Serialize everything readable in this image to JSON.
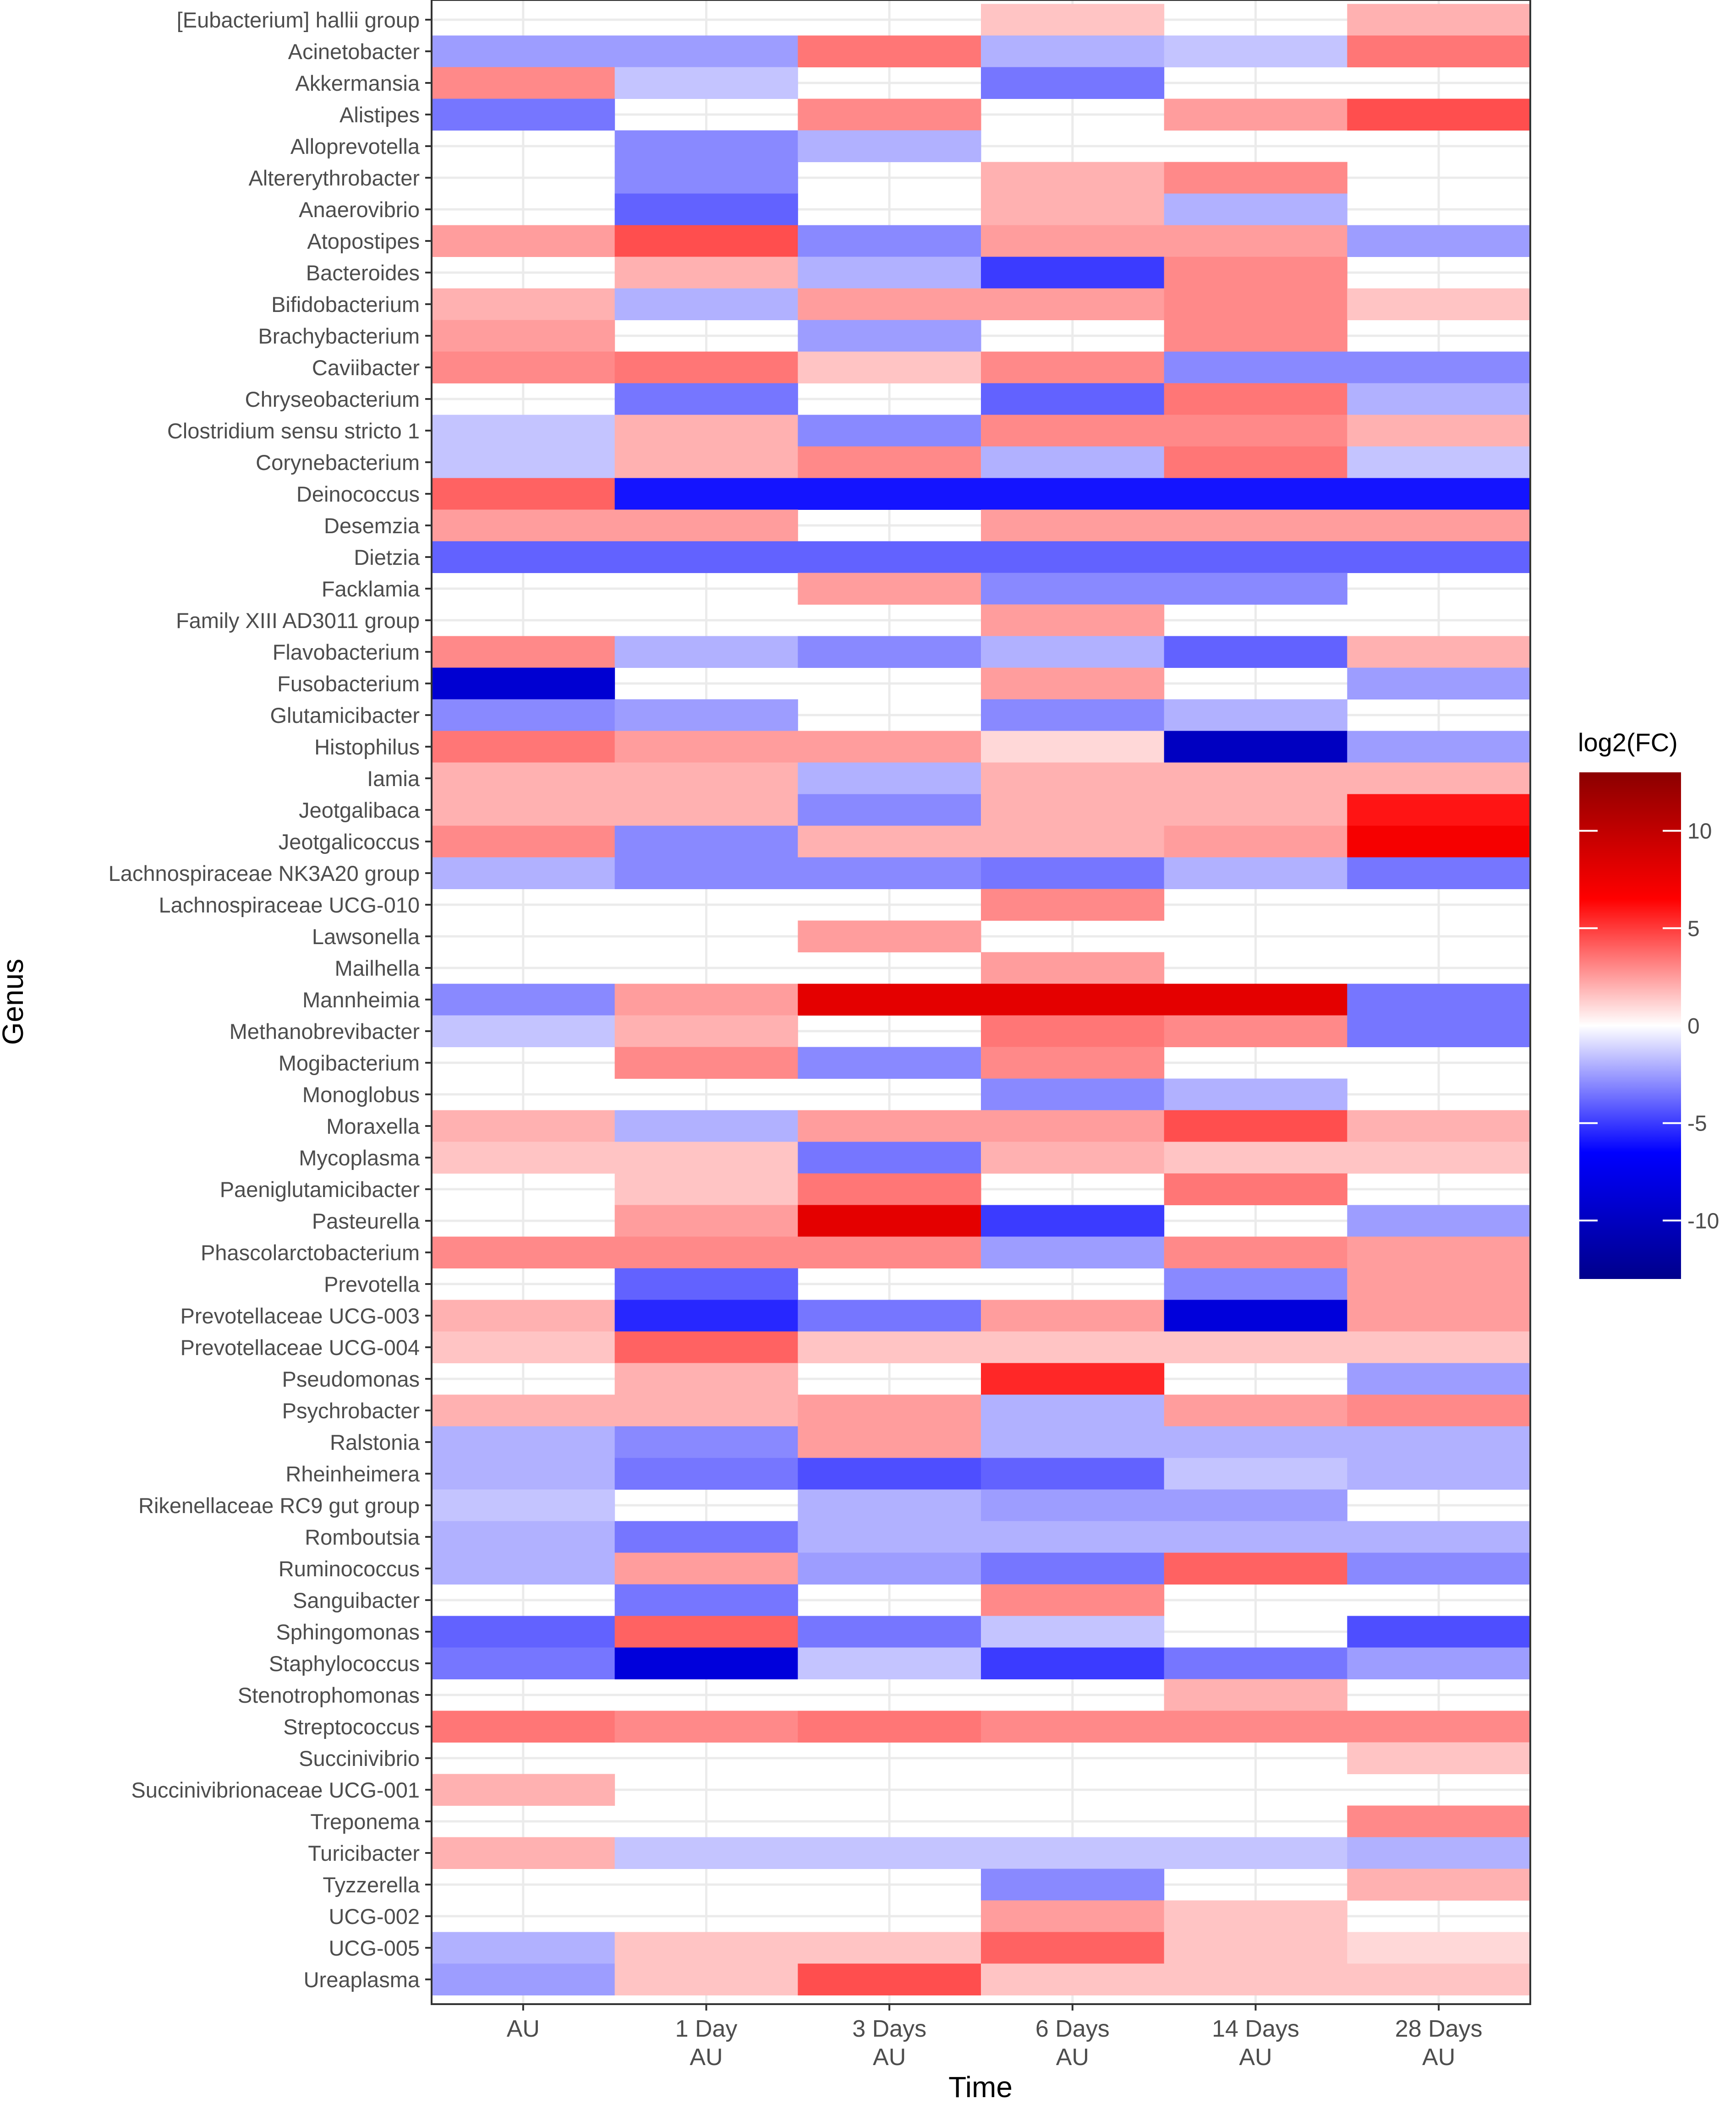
{
  "chart_data": {
    "type": "heatmap",
    "xlabel": "Time",
    "ylabel": "Genus",
    "x_categories": [
      [
        "AU"
      ],
      [
        "1 Day",
        "AU"
      ],
      [
        "3 Days",
        "AU"
      ],
      [
        "6 Days",
        "AU"
      ],
      [
        "14 Days",
        "AU"
      ],
      [
        "28 Days",
        "AU"
      ]
    ],
    "y_categories": [
      "[Eubacterium] hallii group",
      "Acinetobacter",
      "Akkermansia",
      "Alistipes",
      "Alloprevotella",
      "Altererythrobacter",
      "Anaerovibrio",
      "Atopostipes",
      "Bacteroides",
      "Bifidobacterium",
      "Brachybacterium",
      "Caviibacter",
      "Chryseobacterium",
      "Clostridium sensu stricto 1",
      "Corynebacterium",
      "Deinococcus",
      "Desemzia",
      "Dietzia",
      "Facklamia",
      "Family XIII AD3011 group",
      "Flavobacterium",
      "Fusobacterium",
      "Glutamicibacter",
      "Histophilus",
      "Iamia",
      "Jeotgalibaca",
      "Jeotgalicoccus",
      "Lachnospiraceae NK3A20 group",
      "Lachnospiraceae UCG-010",
      "Lawsonella",
      "Mailhella",
      "Mannheimia",
      "Methanobrevibacter",
      "Mogibacterium",
      "Monoglobus",
      "Moraxella",
      "Mycoplasma",
      "Paeniglutamicibacter",
      "Pasteurella",
      "Phascolarctobacterium",
      "Prevotella",
      "Prevotellaceae UCG-003",
      "Prevotellaceae UCG-004",
      "Pseudomonas",
      "Psychrobacter",
      "Ralstonia",
      "Rheinheimera",
      "Rikenellaceae RC9 gut group",
      "Romboutsia",
      "Ruminococcus",
      "Sanguibacter",
      "Sphingomonas",
      "Staphylococcus",
      "Stenotrophomonas",
      "Streptococcus",
      "Succinivibrio",
      "Succinivibrionaceae UCG-001",
      "Treponema",
      "Turicibacter",
      "Tyzzerella",
      "UCG-002",
      "UCG-005",
      "Ureaplasma"
    ],
    "values": [
      [
        null,
        null,
        null,
        1.5,
        null,
        2
      ],
      [
        -2.5,
        -2.5,
        3.5,
        -2,
        -1.5,
        3.5
      ],
      [
        3,
        -1.5,
        null,
        -3.5,
        null,
        null
      ],
      [
        -3.5,
        null,
        3,
        null,
        2.5,
        4.5
      ],
      [
        null,
        -3,
        -2,
        null,
        null,
        null
      ],
      [
        null,
        -3,
        null,
        2,
        3,
        null
      ],
      [
        null,
        -4,
        null,
        2,
        -2,
        null
      ],
      [
        2.5,
        4.5,
        -3,
        2.5,
        2.5,
        -2.5
      ],
      [
        null,
        2,
        -2,
        -5,
        3,
        null
      ],
      [
        2,
        -2,
        2.5,
        2.5,
        3,
        1.5
      ],
      [
        2.5,
        null,
        -2.5,
        null,
        3,
        null
      ],
      [
        3,
        3.5,
        1.5,
        3,
        -3,
        -3
      ],
      [
        null,
        -3.5,
        null,
        -4,
        3.5,
        -2
      ],
      [
        -1.5,
        2,
        -3,
        3,
        3,
        2
      ],
      [
        -1.5,
        2,
        3,
        -2,
        3.5,
        -1.5
      ],
      [
        4,
        -6,
        -6,
        -6,
        -6,
        -6
      ],
      [
        2.5,
        2.5,
        null,
        2.5,
        2.5,
        2.5
      ],
      [
        -4,
        -4,
        -4,
        -4,
        -4,
        -4
      ],
      [
        null,
        null,
        2.5,
        -3,
        -3,
        null
      ],
      [
        null,
        null,
        null,
        2.5,
        null,
        null
      ],
      [
        3,
        -2,
        -3,
        -2,
        -4,
        2
      ],
      [
        -9,
        null,
        null,
        2.5,
        null,
        -2.5
      ],
      [
        -3,
        -2.5,
        null,
        -3,
        -2,
        null
      ],
      [
        3.5,
        2.5,
        2.5,
        1,
        -10,
        -2.5
      ],
      [
        2,
        2,
        -2,
        2,
        2,
        2
      ],
      [
        2,
        2,
        -3,
        2,
        2,
        6
      ],
      [
        3,
        -3,
        2,
        2,
        2.5,
        7
      ],
      [
        -2,
        -3,
        -3,
        -3.5,
        -2,
        -3.5
      ],
      [
        null,
        null,
        null,
        3,
        null,
        null
      ],
      [
        null,
        null,
        2.5,
        null,
        null,
        null
      ],
      [
        null,
        null,
        null,
        2.5,
        null,
        null
      ],
      [
        -3,
        2.5,
        8,
        8,
        8,
        -3.5
      ],
      [
        -1.5,
        2,
        null,
        3.5,
        3,
        -3.5
      ],
      [
        null,
        3,
        -3,
        3,
        null,
        null
      ],
      [
        null,
        null,
        null,
        -3,
        -2,
        null
      ],
      [
        2,
        -2,
        2.5,
        2.5,
        4.5,
        2
      ],
      [
        1.5,
        1.5,
        -3.5,
        2,
        1.5,
        1.5
      ],
      [
        null,
        1.5,
        3.5,
        null,
        3.5,
        null
      ],
      [
        null,
        2.5,
        8,
        -5,
        null,
        -2.5
      ],
      [
        3,
        3,
        3,
        -2.5,
        3,
        2.5
      ],
      [
        null,
        -4,
        null,
        null,
        -3,
        2.5
      ],
      [
        2,
        -5.5,
        -3.5,
        2.5,
        -8.5,
        2.5
      ],
      [
        1.5,
        4,
        1.5,
        1.5,
        1.5,
        1.5
      ],
      [
        null,
        2,
        null,
        5.5,
        null,
        -2.5
      ],
      [
        2,
        2,
        2.5,
        -2,
        2.5,
        3
      ],
      [
        -2,
        -3,
        2.5,
        -2,
        -2,
        -2
      ],
      [
        -2,
        -3.5,
        -4.5,
        -4,
        -1.5,
        -2
      ],
      [
        -1.5,
        null,
        -2,
        -2.5,
        -2.5,
        null
      ],
      [
        -2,
        -3.5,
        -2,
        -2,
        -2,
        -2
      ],
      [
        -2,
        2.5,
        -2.5,
        -3.5,
        4,
        -3
      ],
      [
        null,
        -3.5,
        null,
        3,
        null,
        null
      ],
      [
        -4,
        4,
        -3.5,
        -1.5,
        null,
        -4.5
      ],
      [
        -3.5,
        -8.5,
        -1.5,
        -5,
        -3.5,
        -2.5
      ],
      [
        null,
        null,
        null,
        null,
        2,
        null
      ],
      [
        3.5,
        3,
        3.5,
        3,
        3,
        3
      ],
      [
        null,
        null,
        null,
        null,
        null,
        1.5
      ],
      [
        2,
        null,
        null,
        null,
        null,
        null
      ],
      [
        null,
        null,
        null,
        null,
        null,
        3
      ],
      [
        2,
        -1.5,
        -1.5,
        -1.5,
        -1.5,
        -2
      ],
      [
        null,
        null,
        null,
        -3,
        null,
        2
      ],
      [
        null,
        null,
        null,
        2.5,
        1.5,
        null
      ],
      [
        -2,
        1.5,
        1.5,
        4,
        1.5,
        1
      ],
      [
        -2.5,
        1.5,
        4.5,
        1.5,
        1.5,
        1.5
      ]
    ],
    "legend": {
      "title": "log2(FC)",
      "range": [
        -13,
        13
      ],
      "ticks": [
        10,
        5,
        0,
        -5,
        -10
      ],
      "tick_labels": [
        "10",
        "5",
        "0",
        "-5",
        "-10"
      ],
      "placement": "right"
    },
    "colors": {
      "low": "#00008B",
      "mid_low": "#0000FF",
      "mid": "#FFFFFF",
      "mid_high": "#FF0000",
      "high": "#8B0000"
    },
    "grid": true
  }
}
